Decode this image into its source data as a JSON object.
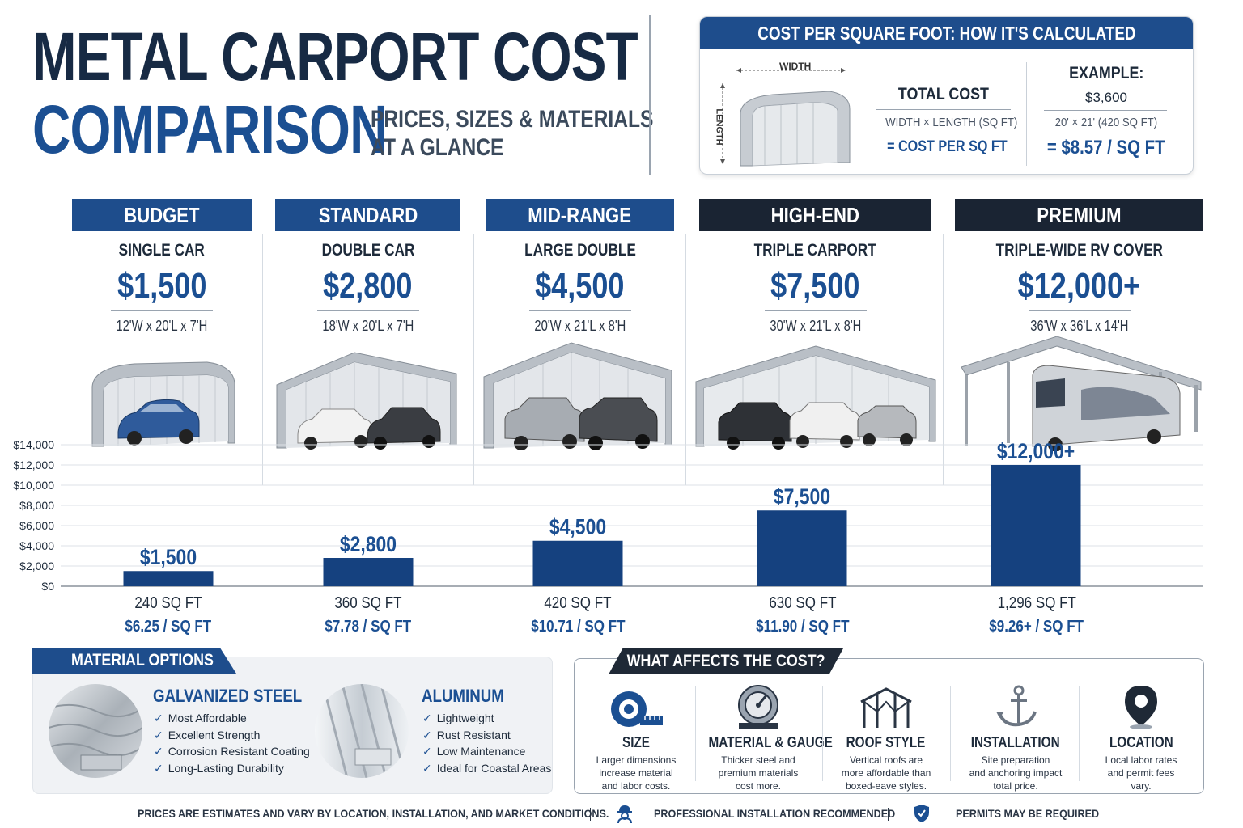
{
  "header": {
    "title_line1": "METAL CARPORT COST",
    "title_line2": "COMPARISON",
    "subtitle_line1": "PRICES, SIZES & MATERIALS",
    "subtitle_line2": "AT A GLANCE"
  },
  "formula": {
    "heading": "COST PER SQUARE FOOT:   HOW IT'S CALCULATED",
    "width_label": "WIDTH",
    "length_label": "LENGTH",
    "total_cost": "TOTAL COST",
    "divisor": "WIDTH × LENGTH (SQ FT)",
    "result": "= COST PER SQ FT",
    "example_label": "EXAMPLE:",
    "example_cost": "$3,600",
    "example_size": "20' × 21' (420 SQ FT)",
    "example_result": "= $8.57 / SQ FT"
  },
  "tiers": [
    {
      "label": "BUDGET",
      "type": "SINGLE CAR",
      "price": "$1,500",
      "dims": "12'W x 20'L x 7'H",
      "head_color": "#1e4d8c"
    },
    {
      "label": "STANDARD",
      "type": "DOUBLE CAR",
      "price": "$2,800",
      "dims": "18'W x 20'L x 7'H",
      "head_color": "#1e4d8c"
    },
    {
      "label": "MID-RANGE",
      "type": "LARGE DOUBLE",
      "price": "$4,500",
      "dims": "20'W x 21'L x 8'H",
      "head_color": "#1e4d8c"
    },
    {
      "label": "HIGH-END",
      "type": "TRIPLE CARPORT",
      "price": "$7,500",
      "dims": "30'W x 21'L x 8'H",
      "head_color": "#1a2433"
    },
    {
      "label": "PREMIUM",
      "type": "TRIPLE-WIDE RV COVER",
      "price": "$12,000+",
      "dims": "36'W x 36'L x 14'H",
      "head_color": "#1a2433"
    }
  ],
  "chart_data": {
    "type": "bar",
    "categories": [
      "BUDGET",
      "STANDARD",
      "MID-RANGE",
      "HIGH-END",
      "PREMIUM"
    ],
    "values": [
      1500,
      2800,
      4500,
      7500,
      12000
    ],
    "data_labels": [
      "$1,500",
      "$2,800",
      "$4,500",
      "$7,500",
      "$12,000+"
    ],
    "y_ticks": [
      "$0",
      "$2,000",
      "$4,000",
      "$6,000",
      "$8,000",
      "$10,000",
      "$12,000",
      "$14,000"
    ],
    "ylim": [
      0,
      14000
    ],
    "grid": true,
    "bar_color": "#15417f",
    "square_feet": [
      "240 SQ FT",
      "360 SQ FT",
      "420 SQ FT",
      "630 SQ FT",
      "1,296 SQ FT"
    ],
    "cost_per_sqft": [
      "$6.25 / SQ FT",
      "$7.78 / SQ FT",
      "$10.71 / SQ FT",
      "$11.90 / SQ FT",
      "$9.26+ / SQ FT"
    ]
  },
  "materials": {
    "heading": "MATERIAL OPTIONS",
    "steel": {
      "title": "GALVANIZED STEEL",
      "points": [
        "Most Affordable",
        "Excellent Strength",
        "Corrosion Resistant Coating",
        "Long-Lasting Durability"
      ]
    },
    "aluminum": {
      "title": "ALUMINUM",
      "points": [
        "Lightweight",
        "Rust Resistant",
        "Low Maintenance",
        "Ideal for Coastal Areas"
      ]
    }
  },
  "factors": {
    "heading": "WHAT AFFECTS THE COST?",
    "items": [
      {
        "icon": "tape-measure-icon",
        "title": "SIZE",
        "line1": "Larger dimensions",
        "line2": "increase material",
        "line3": "and labor costs."
      },
      {
        "icon": "gauge-icon",
        "title": "MATERIAL & GAUGE",
        "line1": "Thicker steel and",
        "line2": "premium materials",
        "line3": "cost more."
      },
      {
        "icon": "roof-frame-icon",
        "title": "ROOF STYLE",
        "line1": "Vertical roofs are",
        "line2": "more affordable than",
        "line3": "boxed-eave styles."
      },
      {
        "icon": "anchor-icon",
        "title": "INSTALLATION",
        "line1": "Site preparation",
        "line2": "and anchoring impact",
        "line3": "total price."
      },
      {
        "icon": "location-pin-icon",
        "title": "LOCATION",
        "line1": "Local labor rates",
        "line2": "and permit fees",
        "line3": "vary."
      }
    ]
  },
  "footer": {
    "disclaimer": "PRICES ARE ESTIMATES AND VARY BY LOCATION, INSTALLATION, AND MARKET CONDITIONS.",
    "install_note": "PROFESSIONAL INSTALLATION RECOMMENDED",
    "permit_note": "PERMITS MAY BE REQUIRED"
  }
}
